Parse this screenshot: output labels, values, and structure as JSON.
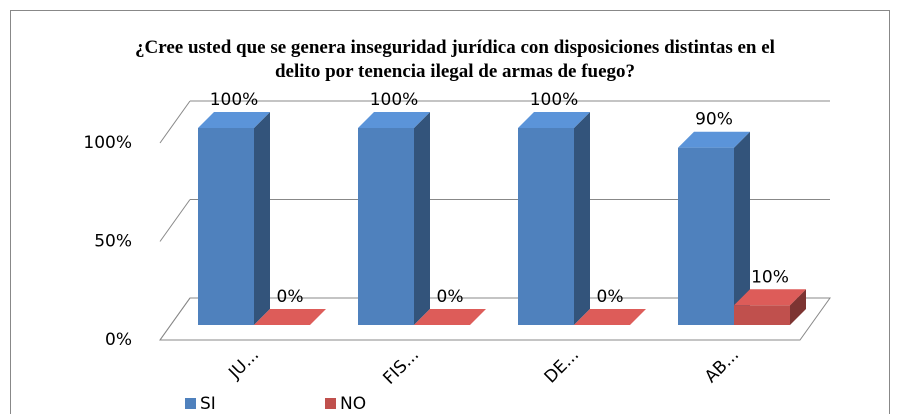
{
  "chart_data": {
    "type": "bar3d",
    "title": "¿Cree usted que se genera inseguridad jurídica con disposiciones distintas en el delito por tenencia ilegal de armas de fuego?",
    "categories": [
      "JU...",
      "FIS...",
      "DE...",
      "AB..."
    ],
    "series": [
      {
        "name": "SI",
        "color": "#4f81bd",
        "values": [
          100,
          100,
          100,
          90
        ],
        "value_labels": [
          "100%",
          "100%",
          "100%",
          "90%"
        ]
      },
      {
        "name": "NO",
        "color": "#c0504d",
        "values": [
          0,
          0,
          0,
          10
        ],
        "value_labels": [
          "0%",
          "0%",
          "0%",
          "10%"
        ]
      }
    ],
    "ylim": [
      0,
      100
    ],
    "yticks": [
      {
        "value": 0,
        "label": "0%"
      },
      {
        "value": 50,
        "label": "50%"
      },
      {
        "value": 100,
        "label": "100%"
      }
    ],
    "grid": true,
    "legend": "bottom"
  }
}
